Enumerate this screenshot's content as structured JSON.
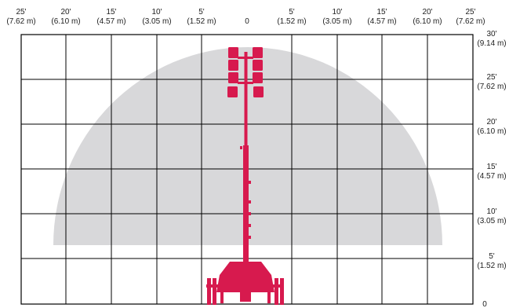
{
  "colors": {
    "background": "#ffffff",
    "grid": "#000000",
    "coverage": "#d8d8da",
    "machine": "#d71a4e"
  },
  "top_labels": [
    {
      "ft": "25'",
      "m": "(7.62 m)"
    },
    {
      "ft": "20'",
      "m": "(6.10 m)"
    },
    {
      "ft": "15'",
      "m": "(4.57 m)"
    },
    {
      "ft": "10'",
      "m": "(3.05 m)"
    },
    {
      "ft": "5'",
      "m": "(1.52 m)"
    },
    {
      "ft": "0",
      "m": ""
    },
    {
      "ft": "5'",
      "m": "(1.52 m)"
    },
    {
      "ft": "10'",
      "m": "(3.05 m)"
    },
    {
      "ft": "15'",
      "m": "(4.57 m)"
    },
    {
      "ft": "20'",
      "m": "(6.10 m)"
    },
    {
      "ft": "25'",
      "m": "(7.62 m)"
    }
  ],
  "right_labels": [
    {
      "ft": "30'",
      "m": "(9.14 m)"
    },
    {
      "ft": "25'",
      "m": "(7.62 m)"
    },
    {
      "ft": "20'",
      "m": "(6.10 m)"
    },
    {
      "ft": "15'",
      "m": "(4.57 m)"
    },
    {
      "ft": "10'",
      "m": "(3.05 m)"
    },
    {
      "ft": "5'",
      "m": "(1.52 m)"
    },
    {
      "ft": "0",
      "m": ""
    }
  ]
}
